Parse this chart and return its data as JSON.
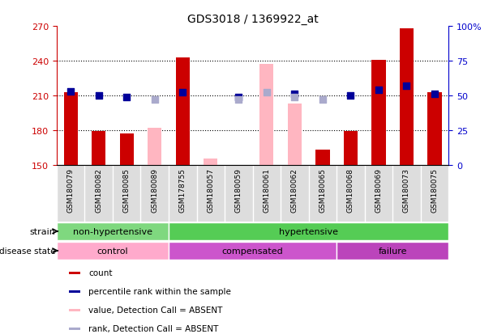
{
  "title": "GDS3018 / 1369922_at",
  "samples": [
    "GSM180079",
    "GSM180082",
    "GSM180085",
    "GSM180089",
    "GSM178755",
    "GSM180057",
    "GSM180059",
    "GSM180061",
    "GSM180062",
    "GSM180065",
    "GSM180068",
    "GSM180069",
    "GSM180073",
    "GSM180075"
  ],
  "count_values": [
    213,
    179,
    177,
    null,
    243,
    null,
    null,
    null,
    null,
    163,
    179,
    241,
    268,
    213
  ],
  "count_absent_values": [
    null,
    null,
    null,
    182,
    null,
    155,
    null,
    237,
    203,
    null,
    null,
    null,
    null,
    null
  ],
  "percentile_values": [
    53,
    50,
    49,
    null,
    52,
    null,
    49,
    null,
    51,
    null,
    50,
    54,
    57,
    51
  ],
  "percentile_absent_values": [
    null,
    null,
    null,
    47,
    null,
    null,
    47,
    52,
    49,
    47,
    null,
    null,
    null,
    null
  ],
  "ylim_left": [
    150,
    270
  ],
  "ylim_right": [
    0,
    100
  ],
  "yticks_left": [
    150,
    180,
    210,
    240,
    270
  ],
  "yticks_right": [
    0,
    25,
    50,
    75,
    100
  ],
  "ytick_labels_right": [
    "0",
    "25",
    "50",
    "75",
    "100%"
  ],
  "grid_values": [
    180,
    210,
    240
  ],
  "bar_bottom": 150,
  "strain_groups": [
    {
      "label": "non-hypertensive",
      "start": 0,
      "end": 4,
      "color": "#7FD87F"
    },
    {
      "label": "hypertensive",
      "start": 4,
      "end": 14,
      "color": "#55CC55"
    }
  ],
  "disease_groups": [
    {
      "label": "control",
      "start": 0,
      "end": 4,
      "color": "#FFAABB"
    },
    {
      "label": "compensated",
      "start": 4,
      "end": 10,
      "color": "#DD55DD"
    },
    {
      "label": "failure",
      "start": 10,
      "end": 14,
      "color": "#CC44CC"
    }
  ],
  "color_count": "#CC0000",
  "color_count_absent": "#FFB6C1",
  "color_percentile": "#000099",
  "color_percentile_absent": "#AAAACC",
  "left_axis_color": "#CC0000",
  "right_axis_color": "#0000CC",
  "bar_width": 0.5,
  "dot_size": 40,
  "label_strain": "strain",
  "label_disease": "disease state",
  "legend_labels": [
    "count",
    "percentile rank within the sample",
    "value, Detection Call = ABSENT",
    "rank, Detection Call = ABSENT"
  ],
  "legend_colors": [
    "#CC0000",
    "#000099",
    "#FFB6C1",
    "#AAAACC"
  ]
}
